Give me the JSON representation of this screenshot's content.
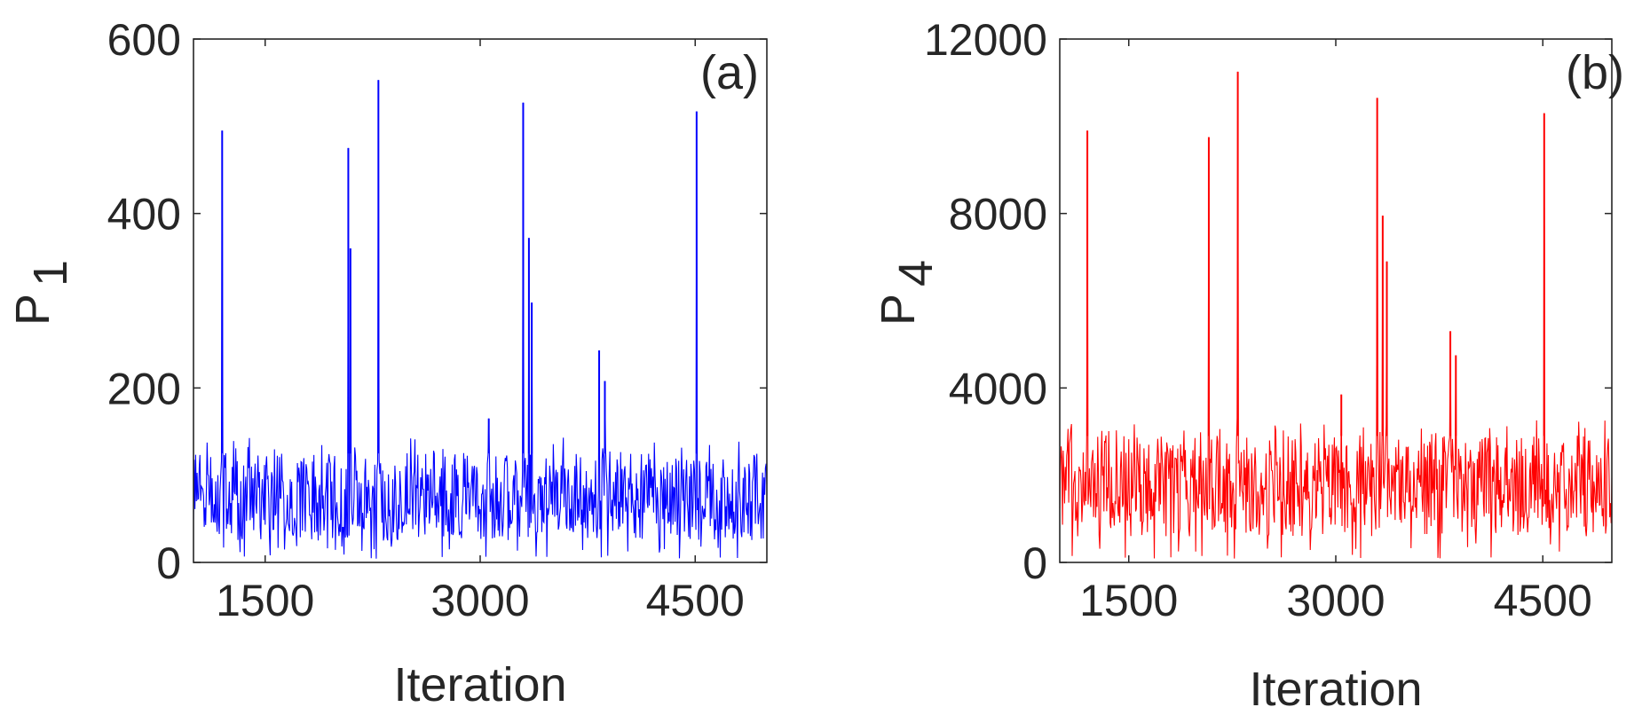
{
  "chart_data": [
    {
      "type": "line",
      "panel_label": "(a)",
      "xlabel": "Iteration",
      "ylabel_main": "P",
      "ylabel_sub": "1",
      "xlim": [
        1000,
        5000
      ],
      "ylim": [
        0,
        600
      ],
      "xticks": [
        1500,
        3000,
        4500
      ],
      "xtick_labels": [
        "1500",
        "3000",
        "4500"
      ],
      "yticks": [
        0,
        200,
        400,
        600
      ],
      "ytick_labels": [
        "0",
        "200",
        "400",
        "600"
      ],
      "grid": false,
      "color": "#0000ff",
      "noise_band": [
        25,
        125
      ],
      "spikes": [
        {
          "x": 1200,
          "y": 495
        },
        {
          "x": 2080,
          "y": 475
        },
        {
          "x": 2095,
          "y": 360
        },
        {
          "x": 2290,
          "y": 553
        },
        {
          "x": 3060,
          "y": 165
        },
        {
          "x": 3300,
          "y": 527
        },
        {
          "x": 3340,
          "y": 372
        },
        {
          "x": 3360,
          "y": 298
        },
        {
          "x": 3830,
          "y": 243
        },
        {
          "x": 3870,
          "y": 208
        },
        {
          "x": 4510,
          "y": 517
        }
      ]
    },
    {
      "type": "line",
      "panel_label": "(b)",
      "xlabel": "Iteration",
      "ylabel_main": "P",
      "ylabel_sub": "4",
      "xlim": [
        1000,
        5000
      ],
      "ylim": [
        0,
        12000
      ],
      "xticks": [
        1500,
        3000,
        4500
      ],
      "xtick_labels": [
        "1500",
        "3000",
        "4500"
      ],
      "yticks": [
        0,
        4000,
        8000,
        12000
      ],
      "ytick_labels": [
        "0",
        "4000",
        "8000",
        "12000"
      ],
      "grid": false,
      "color": "#ff0000",
      "noise_band": [
        600,
        2900
      ],
      "spikes": [
        {
          "x": 1200,
          "y": 9900
        },
        {
          "x": 2080,
          "y": 9750
        },
        {
          "x": 2290,
          "y": 11250
        },
        {
          "x": 3040,
          "y": 3850
        },
        {
          "x": 3300,
          "y": 10650
        },
        {
          "x": 3340,
          "y": 7950
        },
        {
          "x": 3370,
          "y": 6900
        },
        {
          "x": 3830,
          "y": 5300
        },
        {
          "x": 3870,
          "y": 4750
        },
        {
          "x": 4510,
          "y": 10300
        }
      ]
    }
  ]
}
